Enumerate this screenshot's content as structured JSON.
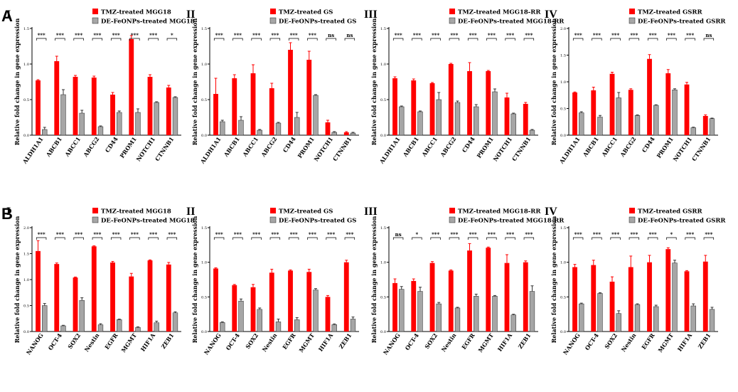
{
  "figure": {
    "row_labels": [
      "A",
      "B"
    ],
    "colors": {
      "tmz": "#ff0000",
      "de": "#a6a6a6",
      "axis": "#000000"
    }
  },
  "chart_data": [
    {
      "type": "bar",
      "panel": "A",
      "subpanel": "I",
      "ylabel": "Relative fold change in gene expression",
      "ylim": [
        0,
        1.5
      ],
      "yticks": [
        "0.0",
        "0.5",
        "1.0",
        "1.5"
      ],
      "categories": [
        "ALDH1A1",
        "ABCB1",
        "ABCC1",
        "ABCG2",
        "CD44",
        "PROM1",
        "NOTCH1",
        "CTNNB1"
      ],
      "series": [
        {
          "name": "TMZ-treated MGG18",
          "values": [
            0.77,
            1.04,
            0.82,
            0.81,
            0.57,
            1.35,
            0.82,
            0.67
          ],
          "errors": [
            0.01,
            0.07,
            0.02,
            0.02,
            0.03,
            0.05,
            0.03,
            0.03
          ]
        },
        {
          "name": "DE-FeONPs-treated MGG18",
          "values": [
            0.08,
            0.57,
            0.31,
            0.12,
            0.32,
            0.32,
            0.46,
            0.53
          ],
          "errors": [
            0.03,
            0.07,
            0.04,
            0.01,
            0.02,
            0.05,
            0.01,
            0.01
          ]
        }
      ],
      "significance": [
        "***",
        "***",
        "***",
        "***",
        "***",
        "***",
        "***",
        "*"
      ]
    },
    {
      "type": "bar",
      "panel": "A",
      "subpanel": "II",
      "ylabel": "Relative fold change in gene expression",
      "ylim": [
        0,
        1.5
      ],
      "yticks": [
        "0.0",
        "0.5",
        "1.0",
        "1.5"
      ],
      "categories": [
        "ALDH1A1",
        "ABCB1",
        "ABCC1",
        "ABCG2",
        "CD44",
        "PROM1",
        "NOTCH1",
        "CTNNB1"
      ],
      "series": [
        {
          "name": "TMZ-treated GS",
          "values": [
            0.58,
            0.8,
            0.87,
            0.66,
            1.2,
            1.06,
            0.18,
            0.04
          ],
          "errors": [
            0.22,
            0.05,
            0.12,
            0.07,
            0.1,
            0.12,
            0.03,
            0.01
          ]
        },
        {
          "name": "DE-FeONPs-treated GS",
          "values": [
            0.19,
            0.21,
            0.07,
            0.17,
            0.25,
            0.56,
            0.04,
            0.03
          ],
          "errors": [
            0.02,
            0.05,
            0.01,
            0.01,
            0.07,
            0.01,
            0.01,
            0.01
          ]
        }
      ],
      "significance": [
        "***",
        "***",
        "***",
        "***",
        "***",
        "***",
        "ns",
        "ns"
      ]
    },
    {
      "type": "bar",
      "panel": "A",
      "subpanel": "III",
      "ylabel": "Relative fold change in gene expression",
      "ylim": [
        0,
        1.5
      ],
      "yticks": [
        "0.0",
        "0.5",
        "1.0",
        "1.5"
      ],
      "categories": [
        "ALDH1A1",
        "ABCB1",
        "ABCC1",
        "ABCG2",
        "CD44",
        "PROM1",
        "NOTCH1",
        "CTNNB1"
      ],
      "series": [
        {
          "name": "TMZ-treated MGG18-RR",
          "values": [
            0.8,
            0.77,
            0.73,
            1.0,
            0.9,
            0.9,
            0.53,
            0.44
          ],
          "errors": [
            0.02,
            0.02,
            0.01,
            0.01,
            0.12,
            0.01,
            0.06,
            0.02
          ]
        },
        {
          "name": "DE-FeONPs-treated MGG18-RR",
          "values": [
            0.4,
            0.33,
            0.5,
            0.46,
            0.4,
            0.61,
            0.3,
            0.07
          ],
          "errors": [
            0.01,
            0.01,
            0.1,
            0.02,
            0.03,
            0.04,
            0.01,
            0.01
          ]
        }
      ],
      "significance": [
        "***",
        "***",
        "***",
        "***",
        "***",
        "***",
        "***",
        "***"
      ]
    },
    {
      "type": "bar",
      "panel": "A",
      "subpanel": "IV",
      "ylabel": "Relative fold change in gene expression",
      "ylim": [
        0,
        2.0
      ],
      "yticks": [
        "0.0",
        "0.5",
        "1.0",
        "1.5",
        "2.0"
      ],
      "categories": [
        "ALDH1A1",
        "ABCB1",
        "ABCC1",
        "ABCG2",
        "CD44",
        "PROM1",
        "NOTCH1",
        "CTNNB1"
      ],
      "series": [
        {
          "name": "TMZ-treated GSRR",
          "values": [
            0.8,
            0.84,
            1.15,
            0.85,
            1.43,
            1.16,
            0.95,
            0.36
          ],
          "errors": [
            0.01,
            0.06,
            0.03,
            0.02,
            0.08,
            0.07,
            0.04,
            0.02
          ]
        },
        {
          "name": "DE-FeONPs-treated GSRR",
          "values": [
            0.42,
            0.34,
            0.7,
            0.37,
            0.56,
            0.85,
            0.14,
            0.31
          ],
          "errors": [
            0.02,
            0.03,
            0.1,
            0.01,
            0.01,
            0.02,
            0.01,
            0.01
          ]
        }
      ],
      "significance": [
        "***",
        "***",
        "***",
        "***",
        "***",
        "***",
        "***",
        "ns"
      ]
    },
    {
      "type": "bar",
      "panel": "B",
      "subpanel": "I",
      "ylabel": "Relative fold change in gene expression",
      "ylim": [
        0,
        2.0
      ],
      "yticks": [
        "0.0",
        "0.5",
        "1.0",
        "1.5",
        "2.0"
      ],
      "categories": [
        "NANOG",
        "OCT-4",
        "SOX2",
        "Nestin",
        "EGFR",
        "MGMT",
        "HIF1A",
        "ZEB1"
      ],
      "series": [
        {
          "name": "TMZ-treated MGG18",
          "values": [
            1.55,
            1.3,
            1.04,
            1.64,
            1.33,
            1.06,
            1.37,
            1.29
          ],
          "errors": [
            0.2,
            0.02,
            0.01,
            0.01,
            0.02,
            0.06,
            0.01,
            0.04
          ]
        },
        {
          "name": "DE-FeONPs-treated MGG18",
          "values": [
            0.5,
            0.11,
            0.6,
            0.13,
            0.23,
            0.08,
            0.17,
            0.36
          ],
          "errors": [
            0.04,
            0.01,
            0.05,
            0.02,
            0.01,
            0.01,
            0.03,
            0.02
          ]
        }
      ],
      "significance": [
        "***",
        "***",
        "***",
        "***",
        "***",
        "***",
        "***",
        "***"
      ]
    },
    {
      "type": "bar",
      "panel": "B",
      "subpanel": "II",
      "ylabel": "Relative fold change in gene expression",
      "ylim": [
        0,
        1.5
      ],
      "yticks": [
        "0.0",
        "0.5",
        "1.0",
        "1.5"
      ],
      "categories": [
        "NANOG",
        "OCT-4",
        "SOX2",
        "Nestin",
        "EGFR",
        "MGMT",
        "HIF1A",
        "ZEB1"
      ],
      "series": [
        {
          "name": "TMZ-treated GS",
          "values": [
            0.91,
            0.67,
            0.64,
            0.85,
            0.88,
            0.86,
            0.5,
            1.0
          ],
          "errors": [
            0.01,
            0.01,
            0.04,
            0.05,
            0.01,
            0.04,
            0.02,
            0.03
          ]
        },
        {
          "name": "DE-FeONPs-treated GS",
          "values": [
            0.13,
            0.44,
            0.32,
            0.14,
            0.17,
            0.6,
            0.1,
            0.18
          ],
          "errors": [
            0.01,
            0.03,
            0.02,
            0.04,
            0.03,
            0.02,
            0.01,
            0.03
          ]
        }
      ],
      "significance": [
        "***",
        "***",
        "***",
        "***",
        "***",
        "***",
        "***",
        "***"
      ]
    },
    {
      "type": "bar",
      "panel": "B",
      "subpanel": "III",
      "ylabel": "Relative fold change in gene expression",
      "ylim": [
        0,
        1.5
      ],
      "yticks": [
        "0.0",
        "0.5",
        "1.0",
        "1.5"
      ],
      "categories": [
        "NANOG",
        "OCT-4",
        "SOX2",
        "Nestin",
        "EGFR",
        "MGMT",
        "HIF1A",
        "ZEB1"
      ],
      "series": [
        {
          "name": "TMZ-treated MGG18-RR",
          "values": [
            0.7,
            0.73,
            0.99,
            0.88,
            1.17,
            1.21,
            0.99,
            1.0
          ],
          "errors": [
            0.06,
            0.03,
            0.02,
            0.01,
            0.1,
            0.01,
            0.12,
            0.02
          ]
        },
        {
          "name": "DE-FeONPs-treated MGG18-RR",
          "values": [
            0.61,
            0.58,
            0.4,
            0.34,
            0.51,
            0.51,
            0.24,
            0.58
          ],
          "errors": [
            0.04,
            0.06,
            0.02,
            0.01,
            0.03,
            0.01,
            0.01,
            0.08
          ]
        }
      ],
      "significance": [
        "ns",
        "*",
        "***",
        "***",
        "***",
        "***",
        "***",
        "***"
      ]
    },
    {
      "type": "bar",
      "panel": "B",
      "subpanel": "IV",
      "ylabel": "Relative fold change in gene expression",
      "ylim": [
        0,
        1.5
      ],
      "yticks": [
        "0.0",
        "0.5",
        "1.0",
        "1.5"
      ],
      "categories": [
        "NANOG",
        "OCT-4",
        "SOX2",
        "Nestin",
        "EGFR",
        "MGMT",
        "HIF1A",
        "ZEB1"
      ],
      "series": [
        {
          "name": "TMZ-treated GSRR",
          "values": [
            0.93,
            0.96,
            0.72,
            0.93,
            1.0,
            1.19,
            0.87,
            1.01
          ],
          "errors": [
            0.04,
            0.07,
            0.07,
            0.16,
            0.1,
            0.02,
            0.01,
            0.09
          ]
        },
        {
          "name": "DE-FeONPs-treated GSRR",
          "values": [
            0.4,
            0.55,
            0.26,
            0.39,
            0.36,
            0.99,
            0.37,
            0.32
          ],
          "errors": [
            0.01,
            0.01,
            0.04,
            0.01,
            0.02,
            0.04,
            0.03,
            0.03
          ]
        }
      ],
      "significance": [
        "***",
        "***",
        "***",
        "***",
        "***",
        "*",
        "***",
        "***"
      ]
    }
  ]
}
